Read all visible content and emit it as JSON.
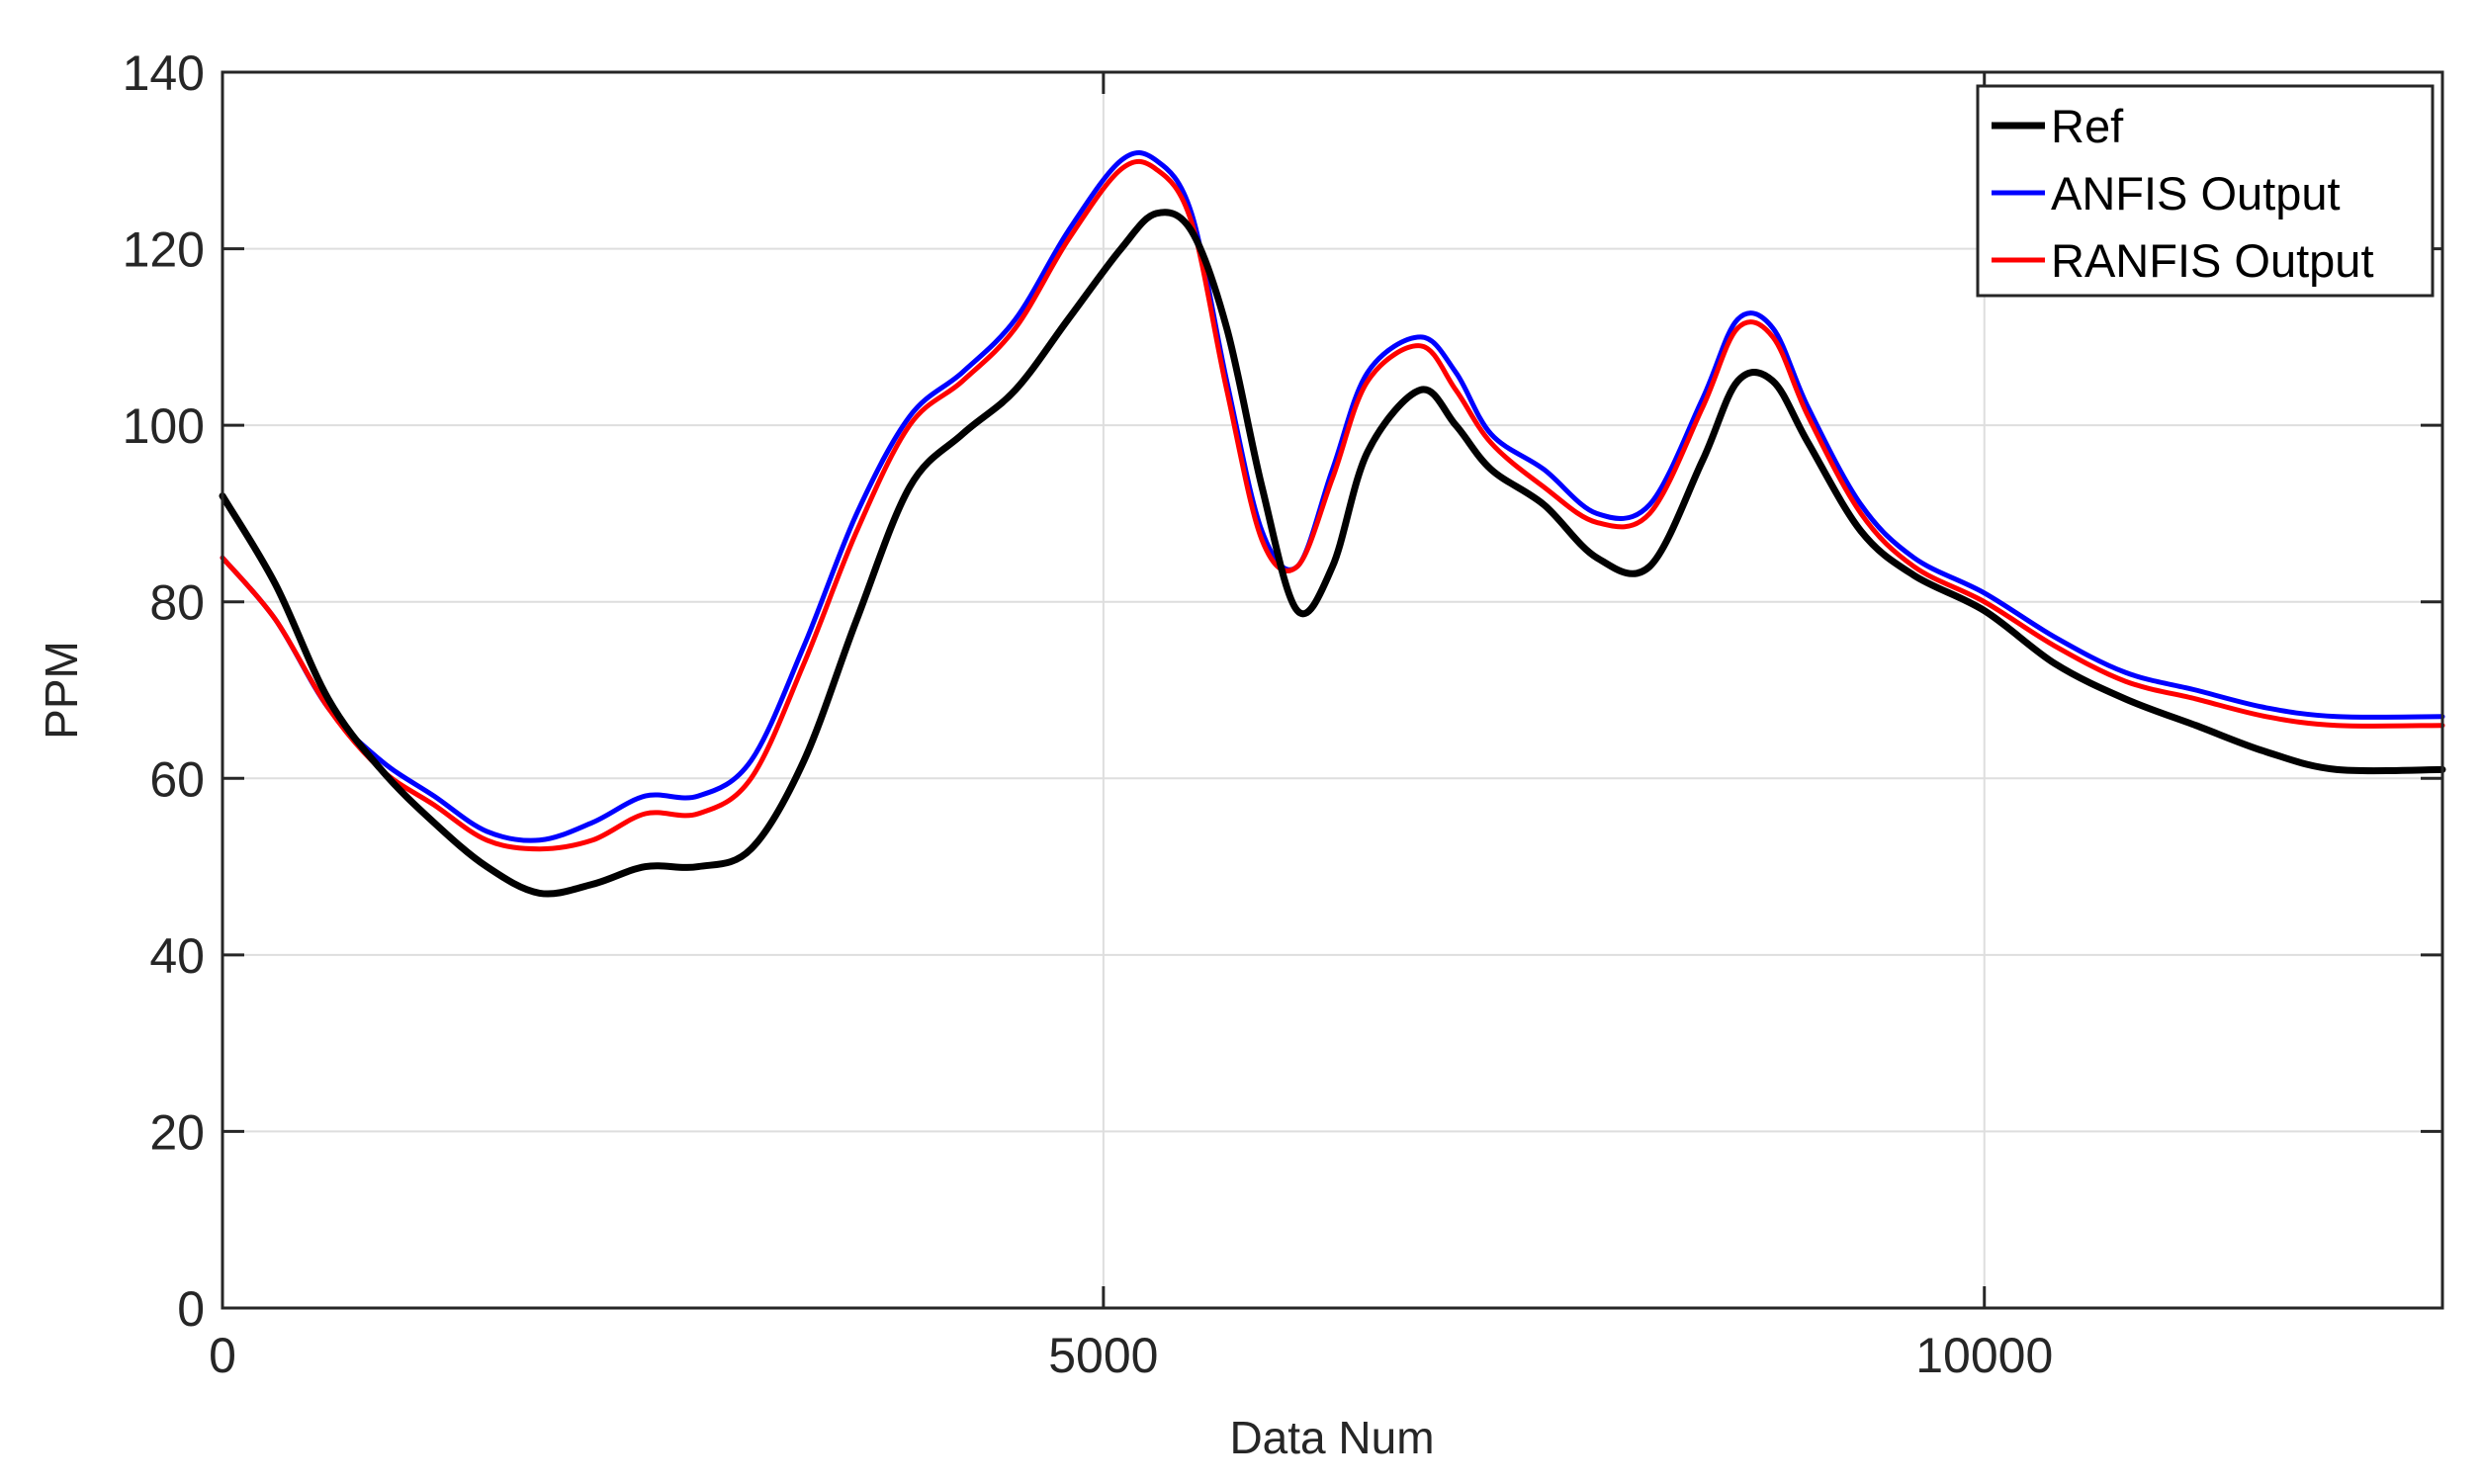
{
  "chart_data": {
    "type": "line",
    "title": "",
    "xlabel": "Data Num",
    "ylabel": "PPM",
    "xlim": [
      0,
      12600
    ],
    "ylim": [
      0,
      140
    ],
    "xticks": [
      0,
      5000,
      10000
    ],
    "xtick_labels": [
      "0",
      "5000",
      "10000"
    ],
    "yticks": [
      0,
      20,
      40,
      60,
      80,
      100,
      120,
      140
    ],
    "ytick_labels": [
      "0",
      "20",
      "40",
      "60",
      "80",
      "100",
      "120",
      "140"
    ],
    "grid": true,
    "legend_position": "top-right",
    "series": [
      {
        "name": "Ref",
        "color": "#000000",
        "x": [
          0,
          300,
          600,
          900,
          1200,
          1500,
          1800,
          2100,
          2400,
          2700,
          3000,
          3300,
          3600,
          3900,
          4200,
          4500,
          4800,
          5100,
          5300,
          5500,
          5700,
          5900,
          6100,
          6300,
          6500,
          6800,
          7000,
          7200,
          7500,
          7800,
          8100,
          8400,
          8600,
          8800,
          9000,
          9300,
          9600,
          10000,
          10400,
          10800,
          11200,
          11600,
          12000,
          12600
        ],
        "y": [
          92,
          82,
          69,
          61,
          55,
          50,
          47,
          48,
          50,
          50,
          52,
          62,
          78,
          93,
          99,
          104,
          112,
          120,
          124,
          122,
          111,
          93,
          79,
          84,
          97,
          104,
          100,
          95,
          91,
          85,
          84,
          96,
          105,
          105,
          98,
          88,
          83,
          79,
          73,
          69,
          66,
          63,
          61,
          61
        ]
      },
      {
        "name": "ANFIS Output",
        "color": "#0000ff",
        "x": [
          0,
          300,
          600,
          900,
          1200,
          1500,
          1800,
          2100,
          2400,
          2700,
          3000,
          3300,
          3600,
          3900,
          4200,
          4500,
          4800,
          5100,
          5300,
          5500,
          5700,
          5900,
          6100,
          6300,
          6500,
          6800,
          7000,
          7200,
          7500,
          7800,
          8100,
          8400,
          8600,
          8800,
          9000,
          9300,
          9600,
          10000,
          10400,
          10800,
          11200,
          11600,
          12000,
          12600
        ],
        "y": [
          85,
          78,
          68,
          62,
          58,
          54,
          53,
          55,
          58,
          58,
          62,
          75,
          90,
          101,
          106,
          112,
          122,
          130,
          130,
          124,
          105,
          88,
          84,
          95,
          106,
          110,
          106,
          99,
          95,
          90,
          91,
          103,
          112,
          111,
          102,
          91,
          85,
          81,
          76,
          72,
          70,
          68,
          67,
          67
        ]
      },
      {
        "name": "RANFIS Output",
        "color": "#ff0000",
        "x": [
          0,
          300,
          600,
          900,
          1200,
          1500,
          1800,
          2100,
          2400,
          2700,
          3000,
          3300,
          3600,
          3900,
          4200,
          4500,
          4800,
          5100,
          5300,
          5500,
          5700,
          5900,
          6100,
          6300,
          6500,
          6800,
          7000,
          7200,
          7500,
          7800,
          8100,
          8400,
          8600,
          8800,
          9000,
          9300,
          9600,
          10000,
          10400,
          10800,
          11200,
          11600,
          12000,
          12600
        ],
        "y": [
          85,
          78,
          68,
          61,
          57,
          53,
          52,
          53,
          56,
          56,
          60,
          73,
          88,
          100,
          105,
          111,
          121,
          129,
          129,
          123,
          104,
          87,
          84,
          94,
          105,
          109,
          104,
          98,
          93,
          89,
          90,
          102,
          111,
          110,
          101,
          90,
          84,
          80,
          75,
          71,
          69,
          67,
          66,
          66
        ]
      }
    ]
  }
}
